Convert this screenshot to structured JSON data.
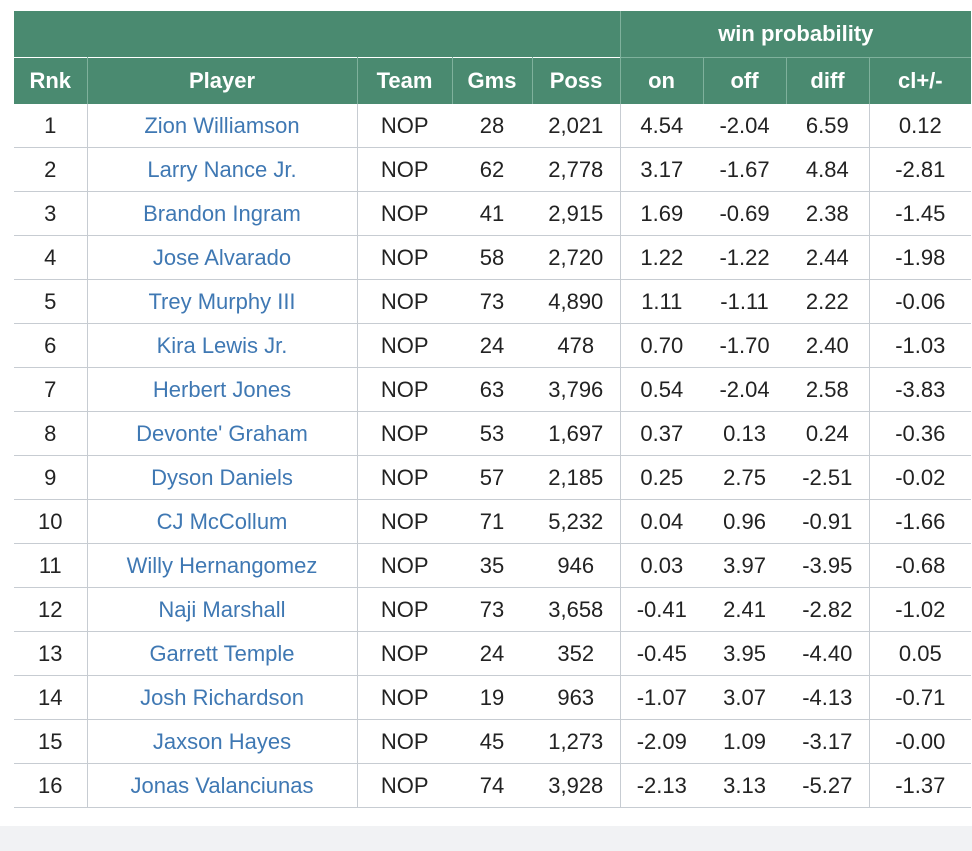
{
  "table": {
    "group_header": "win probability",
    "columns": [
      "Rnk",
      "Player",
      "Team",
      "Gms",
      "Poss",
      "on",
      "off",
      "diff",
      "cl+/-"
    ],
    "rows": [
      {
        "rnk": "1",
        "player": "Zion Williamson",
        "team": "NOP",
        "gms": "28",
        "poss": "2,021",
        "on": "4.54",
        "off": "-2.04",
        "diff": "6.59",
        "cl": "0.12"
      },
      {
        "rnk": "2",
        "player": "Larry Nance Jr.",
        "team": "NOP",
        "gms": "62",
        "poss": "2,778",
        "on": "3.17",
        "off": "-1.67",
        "diff": "4.84",
        "cl": "-2.81"
      },
      {
        "rnk": "3",
        "player": "Brandon Ingram",
        "team": "NOP",
        "gms": "41",
        "poss": "2,915",
        "on": "1.69",
        "off": "-0.69",
        "diff": "2.38",
        "cl": "-1.45"
      },
      {
        "rnk": "4",
        "player": "Jose Alvarado",
        "team": "NOP",
        "gms": "58",
        "poss": "2,720",
        "on": "1.22",
        "off": "-1.22",
        "diff": "2.44",
        "cl": "-1.98"
      },
      {
        "rnk": "5",
        "player": "Trey Murphy III",
        "team": "NOP",
        "gms": "73",
        "poss": "4,890",
        "on": "1.11",
        "off": "-1.11",
        "diff": "2.22",
        "cl": "-0.06"
      },
      {
        "rnk": "6",
        "player": "Kira Lewis Jr.",
        "team": "NOP",
        "gms": "24",
        "poss": "478",
        "on": "0.70",
        "off": "-1.70",
        "diff": "2.40",
        "cl": "-1.03"
      },
      {
        "rnk": "7",
        "player": "Herbert Jones",
        "team": "NOP",
        "gms": "63",
        "poss": "3,796",
        "on": "0.54",
        "off": "-2.04",
        "diff": "2.58",
        "cl": "-3.83"
      },
      {
        "rnk": "8",
        "player": "Devonte' Graham",
        "team": "NOP",
        "gms": "53",
        "poss": "1,697",
        "on": "0.37",
        "off": "0.13",
        "diff": "0.24",
        "cl": "-0.36"
      },
      {
        "rnk": "9",
        "player": "Dyson Daniels",
        "team": "NOP",
        "gms": "57",
        "poss": "2,185",
        "on": "0.25",
        "off": "2.75",
        "diff": "-2.51",
        "cl": "-0.02"
      },
      {
        "rnk": "10",
        "player": "CJ McCollum",
        "team": "NOP",
        "gms": "71",
        "poss": "5,232",
        "on": "0.04",
        "off": "0.96",
        "diff": "-0.91",
        "cl": "-1.66"
      },
      {
        "rnk": "11",
        "player": "Willy Hernangomez",
        "team": "NOP",
        "gms": "35",
        "poss": "946",
        "on": "0.03",
        "off": "3.97",
        "diff": "-3.95",
        "cl": "-0.68"
      },
      {
        "rnk": "12",
        "player": "Naji Marshall",
        "team": "NOP",
        "gms": "73",
        "poss": "3,658",
        "on": "-0.41",
        "off": "2.41",
        "diff": "-2.82",
        "cl": "-1.02"
      },
      {
        "rnk": "13",
        "player": "Garrett Temple",
        "team": "NOP",
        "gms": "24",
        "poss": "352",
        "on": "-0.45",
        "off": "3.95",
        "diff": "-4.40",
        "cl": "0.05"
      },
      {
        "rnk": "14",
        "player": "Josh Richardson",
        "team": "NOP",
        "gms": "19",
        "poss": "963",
        "on": "-1.07",
        "off": "3.07",
        "diff": "-4.13",
        "cl": "-0.71"
      },
      {
        "rnk": "15",
        "player": "Jaxson Hayes",
        "team": "NOP",
        "gms": "45",
        "poss": "1,273",
        "on": "-2.09",
        "off": "1.09",
        "diff": "-3.17",
        "cl": "-0.00"
      },
      {
        "rnk": "16",
        "player": "Jonas Valanciunas",
        "team": "NOP",
        "gms": "74",
        "poss": "3,928",
        "on": "-2.13",
        "off": "3.13",
        "diff": "-5.27",
        "cl": "-1.37"
      }
    ]
  },
  "colors": {
    "header_bg": "#4a8a70",
    "player_link": "#3f78b3",
    "text": "#222222",
    "grid": "#c7ccd2"
  }
}
